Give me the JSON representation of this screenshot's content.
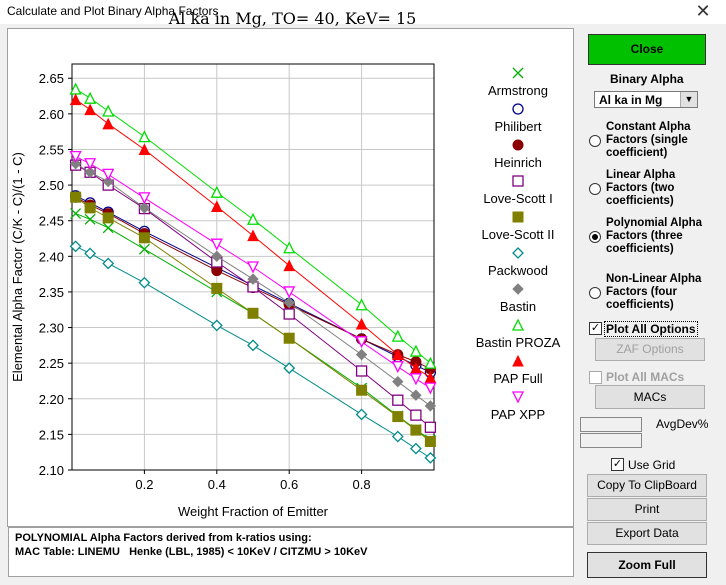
{
  "window": {
    "title": "Calculate and Plot Binary Alpha Factors",
    "close_glyph": "✕"
  },
  "plot": {
    "title": "Al ka in Mg, TO= 40, KeV= 15"
  },
  "status": {
    "line1": "POLYNOMIAL Alpha Factors derived from k-ratios using:",
    "line2": "MAC Table: LINEMU   Henke (LBL, 1985) < 10KeV / CITZMU > 10KeV"
  },
  "controls": {
    "close_label": "Close",
    "binary_alpha_label": "Binary Alpha",
    "binary_alpha_value": "Al ka in Mg",
    "options": [
      {
        "label": "Constant Alpha Factors (single coefficient)",
        "selected": false
      },
      {
        "label": "Linear Alpha Factors (two coefficients)",
        "selected": false
      },
      {
        "label": "Polynomial Alpha Factors (three coefficients)",
        "selected": true
      },
      {
        "label": "Non-Linear Alpha Factors (four coefficients)",
        "selected": false
      }
    ],
    "plot_all_options_label": "Plot All Options",
    "zaf_options_label": "ZAF Options",
    "plot_all_macs_label": "Plot All MACs",
    "macs_label": "MACs",
    "avgdev_label": "AvgDev%",
    "use_grid_label": "Use Grid",
    "copy_label": "Copy To ClipBoard",
    "print_label": "Print",
    "export_label": "Export Data",
    "zoom_label": "Zoom Full"
  },
  "chart_data": {
    "type": "line",
    "title": "Al ka in Mg, TO= 40, KeV= 15",
    "xlabel": "Weight Fraction of Emitter",
    "ylabel": "Elemental Alpha Factor (C/K - C)/(1 - C)",
    "xlim": [
      0,
      1
    ],
    "ylim": [
      2.1,
      2.67
    ],
    "xticks": [
      "0.2",
      "0.4",
      "0.6",
      "0.8"
    ],
    "xtick_values": [
      0.2,
      0.4,
      0.6,
      0.8
    ],
    "yticks": [
      "2.10",
      "2.15",
      "2.20",
      "2.25",
      "2.30",
      "2.35",
      "2.40",
      "2.45",
      "2.50",
      "2.55",
      "2.60",
      "2.65"
    ],
    "ytick_values": [
      2.1,
      2.15,
      2.2,
      2.25,
      2.3,
      2.35,
      2.4,
      2.45,
      2.5,
      2.55,
      2.6,
      2.65
    ],
    "grid": true,
    "x": [
      0.01,
      0.05,
      0.1,
      0.2,
      0.4,
      0.5,
      0.6,
      0.8,
      0.9,
      0.95,
      0.99
    ],
    "series": [
      {
        "name": "Armstrong",
        "color": "#00b000",
        "marker": "x",
        "values": [
          2.46,
          2.452,
          2.44,
          2.41,
          2.35,
          2.32,
          2.285,
          2.215,
          2.176,
          2.157,
          2.142
        ]
      },
      {
        "name": "Philibert",
        "color": "#00008b",
        "marker": "circle-open",
        "values": [
          2.485,
          2.475,
          2.462,
          2.435,
          2.384,
          2.359,
          2.334,
          2.284,
          2.259,
          2.247,
          2.237
        ]
      },
      {
        "name": "Heinrich",
        "color": "#8b0000",
        "marker": "circle-filled",
        "values": [
          2.483,
          2.472,
          2.46,
          2.432,
          2.38,
          2.356,
          2.332,
          2.284,
          2.262,
          2.252,
          2.242
        ]
      },
      {
        "name": "Love-Scott I",
        "color": "#800080",
        "marker": "square-open",
        "values": [
          2.528,
          2.518,
          2.5,
          2.467,
          2.392,
          2.357,
          2.319,
          2.239,
          2.198,
          2.177,
          2.16
        ]
      },
      {
        "name": "Love-Scott II",
        "color": "#808000",
        "marker": "square-filled",
        "values": [
          2.483,
          2.468,
          2.454,
          2.426,
          2.355,
          2.32,
          2.285,
          2.212,
          2.175,
          2.156,
          2.14
        ]
      },
      {
        "name": "Packwood",
        "color": "#008b8b",
        "marker": "diamond-open",
        "values": [
          2.414,
          2.404,
          2.39,
          2.363,
          2.303,
          2.275,
          2.243,
          2.178,
          2.147,
          2.13,
          2.117
        ]
      },
      {
        "name": "Bastin",
        "color": "#808080",
        "marker": "diamond-filled",
        "values": [
          2.53,
          2.518,
          2.505,
          2.468,
          2.4,
          2.368,
          2.335,
          2.262,
          2.224,
          2.205,
          2.19
        ]
      },
      {
        "name": "Bastin PROZA",
        "color": "#00dd00",
        "marker": "triangle-open",
        "values": [
          2.635,
          2.622,
          2.604,
          2.568,
          2.49,
          2.452,
          2.412,
          2.332,
          2.288,
          2.267,
          2.25
        ]
      },
      {
        "name": "PAP Full",
        "color": "#ff0000",
        "marker": "triangle-filled",
        "values": [
          2.62,
          2.606,
          2.586,
          2.55,
          2.47,
          2.429,
          2.387,
          2.305,
          2.262,
          2.243,
          2.23
        ]
      },
      {
        "name": "PAP XPP",
        "color": "#ff00ff",
        "marker": "triangle-down-open",
        "values": [
          2.54,
          2.53,
          2.515,
          2.482,
          2.417,
          2.385,
          2.35,
          2.28,
          2.245,
          2.228,
          2.215
        ]
      }
    ]
  }
}
